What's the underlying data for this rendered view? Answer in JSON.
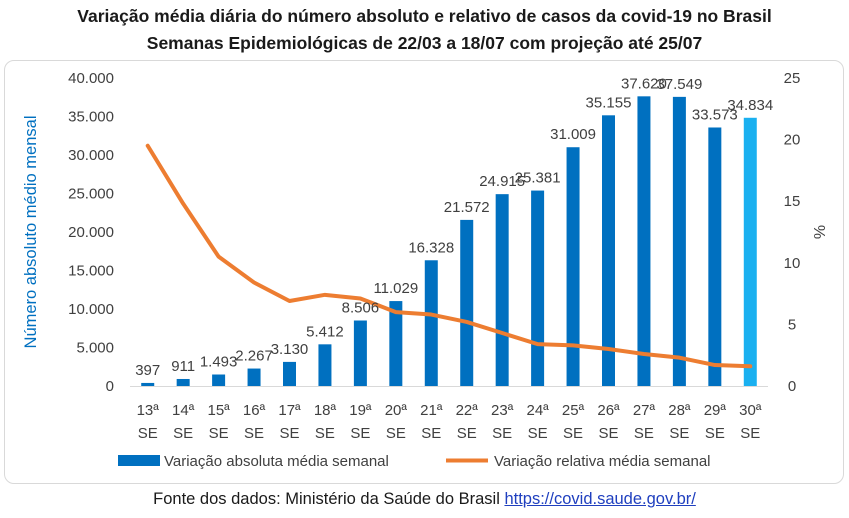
{
  "titles": {
    "line1": "Variação média diária do número absoluto e relativo de casos da covid-19 no Brasil",
    "line2": "Semanas Epidemiológicas de 22/03 a 18/07 com projeção até 25/07"
  },
  "source": {
    "text": "Fonte dos dados: Ministério da Saúde do Brasil",
    "link": "https://covid.saude.gov.br/"
  },
  "chart_data": {
    "type": "bar+line",
    "categories": [
      "13ª SE",
      "14ª SE",
      "15ª SE",
      "16ª SE",
      "17ª SE",
      "18ª SE",
      "19ª SE",
      "20ª SE",
      "21ª SE",
      "22ª SE",
      "23ª SE",
      "24ª SE",
      "25ª SE",
      "26ª SE",
      "27ª SE",
      "28ª SE",
      "29ª SE",
      "30ª SE"
    ],
    "category_lines": [
      [
        "13ª",
        "SE"
      ],
      [
        "14ª",
        "SE"
      ],
      [
        "15ª",
        "SE"
      ],
      [
        "16ª",
        "SE"
      ],
      [
        "17ª",
        "SE"
      ],
      [
        "18ª",
        "SE"
      ],
      [
        "19ª",
        "SE"
      ],
      [
        "20ª",
        "SE"
      ],
      [
        "21ª",
        "SE"
      ],
      [
        "22ª",
        "SE"
      ],
      [
        "23ª",
        "SE"
      ],
      [
        "24ª",
        "SE"
      ],
      [
        "25ª",
        "SE"
      ],
      [
        "26ª",
        "SE"
      ],
      [
        "27ª",
        "SE"
      ],
      [
        "28ª",
        "SE"
      ],
      [
        "29ª",
        "SE"
      ],
      [
        "30ª",
        "SE"
      ]
    ],
    "series": [
      {
        "name": "Variação absoluta média semanal",
        "kind": "bar",
        "axis": "left",
        "values": [
          397,
          911,
          1493,
          2267,
          3130,
          5412,
          8506,
          11029,
          16328,
          21572,
          24915,
          25381,
          31009,
          35155,
          37620,
          37549,
          33573,
          34834
        ],
        "labels": [
          "397",
          "911",
          "1.493",
          "2.267",
          "3.130",
          "5.412",
          "8.506",
          "11.029",
          "16.328",
          "21.572",
          "24.915",
          "25.381",
          "31.009",
          "35.155",
          "37.620",
          "37.549",
          "33.573",
          "34.834"
        ],
        "color": "#0070c0",
        "projection_color": "#1ab0f0",
        "projection_index": 17
      },
      {
        "name": "Variação relativa média semanal",
        "kind": "line",
        "axis": "right",
        "values": [
          19.5,
          14.8,
          10.5,
          8.4,
          6.9,
          7.4,
          7.1,
          6.0,
          5.8,
          5.2,
          4.3,
          3.4,
          3.3,
          3.0,
          2.6,
          2.3,
          1.7,
          1.6
        ],
        "color": "#ed7d31"
      }
    ],
    "y_left": {
      "label": "Número absoluto médio mensal",
      "min": 0,
      "max": 40000,
      "ticks": [
        0,
        5000,
        10000,
        15000,
        20000,
        25000,
        30000,
        35000,
        40000
      ],
      "tick_labels": [
        "0",
        "5.000",
        "10.000",
        "15.000",
        "20.000",
        "25.000",
        "30.000",
        "35.000",
        "40.000"
      ],
      "color": "#0070c0"
    },
    "y_right": {
      "label": "%",
      "min": 0,
      "max": 25,
      "ticks": [
        0,
        5,
        10,
        15,
        20,
        25
      ],
      "tick_labels": [
        "0",
        "5",
        "10",
        "15",
        "20",
        "25"
      ]
    },
    "legend": {
      "position": "bottom",
      "items": [
        "Variação absoluta média semanal",
        "Variação relativa média semanal"
      ]
    },
    "grid": false
  }
}
